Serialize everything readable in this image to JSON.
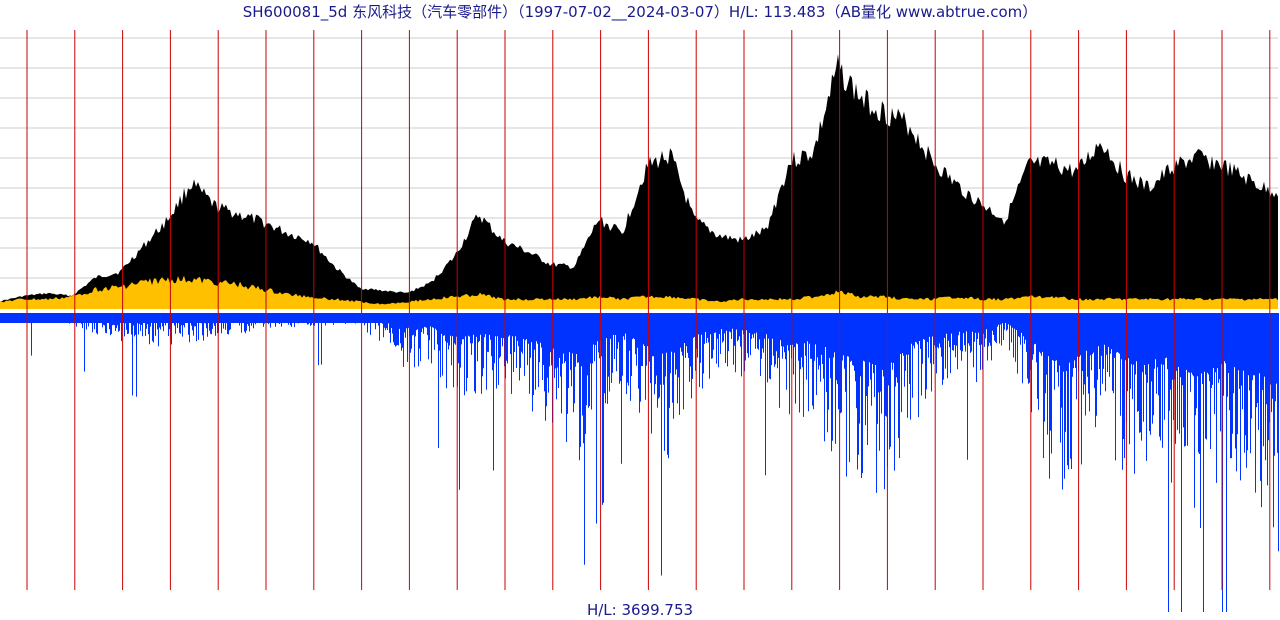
{
  "title": "SH600081_5d 东风科技（汽车零部件）（1997-07-02__2024-03-07）H/L: 113.483（AB量化  www.abtrue.com）",
  "footer_label": "H/L: 3699.753",
  "colors": {
    "price_fill": "#000000",
    "average_fill": "#ffc000",
    "volume_fill": "#0033ff",
    "vertical_lines": "#cc0000",
    "grid_lines": "#cccccc",
    "title_text": "#1a1a8c"
  },
  "chart_data": [
    {
      "type": "area",
      "name": "",
      "x_start": "1997-07-02",
      "x_end": "2024-03-07",
      "high_low_ratio": 113.483,
      "grid": true,
      "x": [
        1997.5,
        1998,
        1998.5,
        1999,
        1999.5,
        2000,
        2000.5,
        2001,
        2001.5,
        2002,
        2002.5,
        2003,
        2003.5,
        2004,
        2004.5,
        2005,
        2005.5,
        2006,
        2006.5,
        2007,
        2007.5,
        2008,
        2008.5,
        2009,
        2009.5,
        2010,
        2010.5,
        2011,
        2011.5,
        2012,
        2012.5,
        2013,
        2013.5,
        2014,
        2014.5,
        2015,
        2015.5,
        2016,
        2016.5,
        2017,
        2017.5,
        2018,
        2018.5,
        2019,
        2019.5,
        2020,
        2020.5,
        2021,
        2021.5,
        2022,
        2022.5,
        2023,
        2023.5,
        2024
      ],
      "series": [
        {
          "values": [
            0.03,
            0.05,
            0.06,
            0.05,
            0.12,
            0.14,
            0.24,
            0.34,
            0.48,
            0.39,
            0.36,
            0.33,
            0.29,
            0.26,
            0.16,
            0.08,
            0.07,
            0.06,
            0.1,
            0.2,
            0.36,
            0.26,
            0.22,
            0.17,
            0.16,
            0.34,
            0.29,
            0.54,
            0.59,
            0.34,
            0.28,
            0.26,
            0.3,
            0.56,
            0.6,
            0.92,
            0.8,
            0.75,
            0.7,
            0.56,
            0.47,
            0.4,
            0.34,
            0.55,
            0.55,
            0.52,
            0.64,
            0.51,
            0.46,
            0.54,
            0.58,
            0.55,
            0.5,
            0.45
          ]
        },
        {
          "values": [
            0.03,
            0.04,
            0.04,
            0.05,
            0.08,
            0.09,
            0.11,
            0.12,
            0.12,
            0.11,
            0.1,
            0.08,
            0.06,
            0.05,
            0.04,
            0.03,
            0.02,
            0.03,
            0.04,
            0.05,
            0.06,
            0.04,
            0.04,
            0.04,
            0.04,
            0.05,
            0.04,
            0.05,
            0.05,
            0.04,
            0.03,
            0.04,
            0.04,
            0.04,
            0.05,
            0.07,
            0.05,
            0.05,
            0.04,
            0.04,
            0.05,
            0.04,
            0.04,
            0.05,
            0.05,
            0.04,
            0.04,
            0.04,
            0.04,
            0.04,
            0.04,
            0.04,
            0.04,
            0.04
          ]
        }
      ]
    },
    {
      "type": "bar",
      "name": "",
      "high_low_ratio": 3699.753,
      "x": [
        1997.5,
        1998,
        1998.5,
        1999,
        1999.5,
        2000,
        2000.5,
        2001,
        2001.5,
        2002,
        2002.5,
        2003,
        2003.5,
        2004,
        2004.5,
        2005,
        2005.5,
        2006,
        2006.5,
        2007,
        2007.5,
        2008,
        2008.5,
        2009,
        2009.5,
        2010,
        2010.5,
        2011,
        2011.5,
        2012,
        2012.5,
        2013,
        2013.5,
        2014,
        2014.5,
        2015,
        2015.5,
        2016,
        2016.5,
        2017,
        2017.5,
        2018,
        2018.5,
        2019,
        2019.5,
        2020,
        2020.5,
        2021,
        2021.5,
        2022,
        2022.5,
        2023,
        2023.5,
        2024
      ],
      "values": [
        0.02,
        0.03,
        0.02,
        0.04,
        0.08,
        0.1,
        0.12,
        0.11,
        0.1,
        0.09,
        0.08,
        0.05,
        0.06,
        0.05,
        0.04,
        0.04,
        0.12,
        0.2,
        0.18,
        0.32,
        0.28,
        0.26,
        0.35,
        0.42,
        0.55,
        0.36,
        0.25,
        0.44,
        0.52,
        0.3,
        0.2,
        0.22,
        0.28,
        0.42,
        0.36,
        0.55,
        0.62,
        0.74,
        0.4,
        0.3,
        0.25,
        0.24,
        0.12,
        0.34,
        0.64,
        0.57,
        0.4,
        0.58,
        0.52,
        0.62,
        0.85,
        0.6,
        0.78,
        0.82
      ]
    }
  ]
}
